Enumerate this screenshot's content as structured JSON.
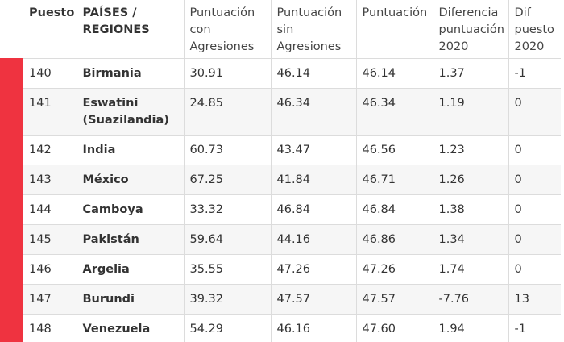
{
  "table": {
    "headers": [
      "Puesto",
      "PAÍSES / REGIONES",
      "Puntuación con Agresiones",
      "Puntuación sin Agresiones",
      "Puntuación",
      "Diferencia puntuación 2020",
      "Dif puesto 2020"
    ],
    "rows": [
      [
        "140",
        "Birmania",
        "30.91",
        "46.14",
        "46.14",
        "1.37",
        "-1"
      ],
      [
        "141",
        "Eswatini (Suazilandia)",
        "24.85",
        "46.34",
        "46.34",
        "1.19",
        "0"
      ],
      [
        "142",
        "India",
        "60.73",
        "43.47",
        "46.56",
        "1.23",
        "0"
      ],
      [
        "143",
        "México",
        "67.25",
        "41.84",
        "46.71",
        "1.26",
        "0"
      ],
      [
        "144",
        "Camboya",
        "33.32",
        "46.84",
        "46.84",
        "1.38",
        "0"
      ],
      [
        "145",
        "Pakistán",
        "59.64",
        "44.16",
        "46.86",
        "1.34",
        "0"
      ],
      [
        "146",
        "Argelia",
        "35.55",
        "47.26",
        "47.26",
        "1.74",
        "0"
      ],
      [
        "147",
        "Burundi",
        "39.32",
        "47.57",
        "47.57",
        "-7.76",
        "13"
      ],
      [
        "148",
        "Venezuela",
        "54.29",
        "46.16",
        "47.60",
        "1.94",
        "-1"
      ]
    ]
  },
  "colors": {
    "accent_red": "#ef3340",
    "border": "#dcdcdc",
    "stripe": "#f6f6f6"
  }
}
